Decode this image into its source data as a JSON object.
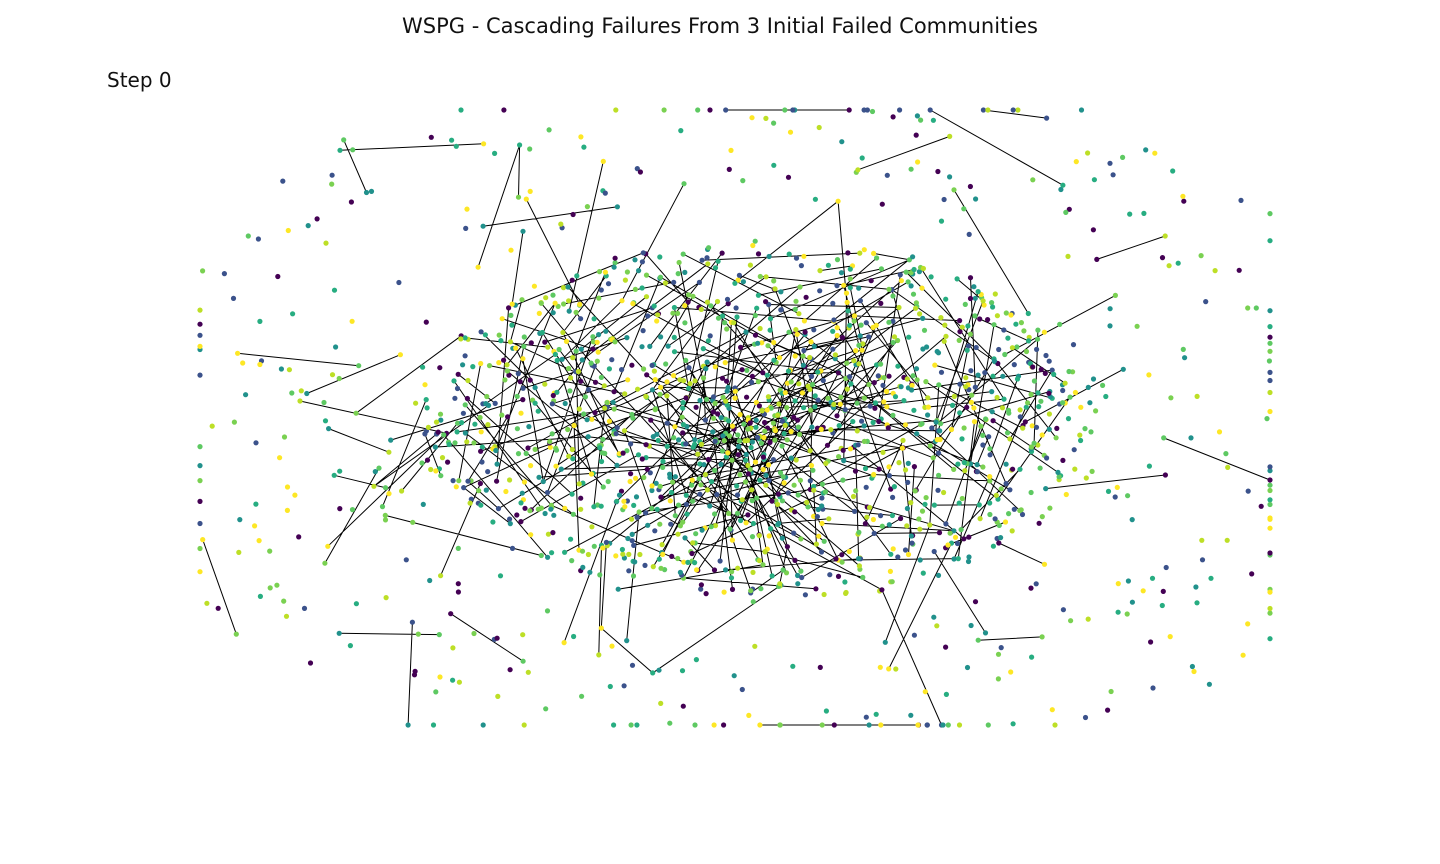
{
  "title": "WSPG - Cascading Failures From 3 Initial Failed Communities",
  "step_label": "Step 0",
  "palette": [
    "#440154",
    "#3b528b",
    "#21918c",
    "#27ad81",
    "#5ec962",
    "#7ad151",
    "#bddf26",
    "#fde725"
  ],
  "edge_color": "#000000"
}
